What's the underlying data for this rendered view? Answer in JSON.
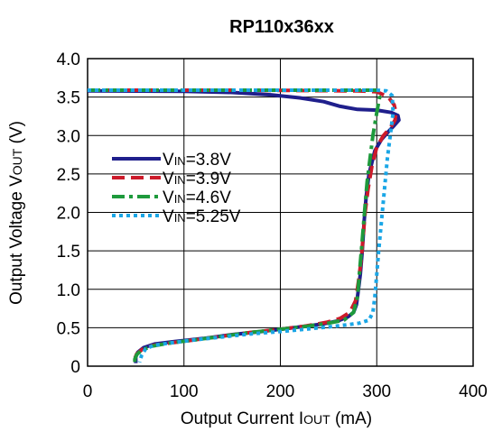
{
  "chart_data": {
    "type": "line",
    "title": "RP110x36xx",
    "xlabel": {
      "main": "Output Current I",
      "sub": "OUT",
      "unit": " (mA)"
    },
    "ylabel": {
      "main": "Output Voltage V",
      "sub": "OUT",
      "unit": " (V)"
    },
    "xlim": [
      0,
      400
    ],
    "ylim": [
      0,
      4.0
    ],
    "x_ticks": [
      "0",
      "100",
      "200",
      "300",
      "400"
    ],
    "y_ticks": [
      "0",
      "0.5",
      "1.0",
      "1.5",
      "2.0",
      "2.5",
      "3.0",
      "3.5",
      "4.0"
    ],
    "grid": true,
    "legend_position": "left",
    "series": [
      {
        "name": "VIN=3.8V",
        "label_prefix": "V",
        "label_sub": "IN",
        "label_rest": "=3.8V",
        "color": "#1f1f8c",
        "style": "solid",
        "x": [
          0,
          100,
          150,
          190,
          220,
          245,
          262,
          280,
          300,
          315,
          322,
          323,
          318,
          312,
          305,
          298,
          292,
          289,
          287,
          285,
          283,
          281,
          279,
          276,
          270,
          260,
          245,
          220,
          200,
          180,
          150,
          120,
          90,
          70,
          58,
          52,
          50,
          50
        ],
        "y": [
          3.58,
          3.575,
          3.56,
          3.53,
          3.49,
          3.44,
          3.38,
          3.34,
          3.33,
          3.3,
          3.26,
          3.2,
          3.13,
          3.05,
          2.95,
          2.8,
          2.5,
          2.2,
          1.9,
          1.5,
          1.2,
          1.0,
          0.8,
          0.7,
          0.64,
          0.59,
          0.55,
          0.51,
          0.48,
          0.45,
          0.41,
          0.36,
          0.32,
          0.29,
          0.24,
          0.18,
          0.12,
          0.04
        ]
      },
      {
        "name": "VIN=3.9V",
        "label_prefix": "V",
        "label_sub": "IN",
        "label_rest": "=3.9V",
        "color": "#cc1a2a",
        "style": "dashed",
        "x": [
          0,
          150,
          230,
          280,
          300,
          312,
          318,
          320,
          319,
          314,
          307,
          300,
          295,
          291,
          288,
          286,
          284,
          281,
          278,
          272,
          262,
          248,
          225,
          200,
          170,
          140,
          110,
          85,
          68,
          57,
          51,
          49,
          49
        ],
        "y": [
          3.59,
          3.59,
          3.585,
          3.58,
          3.57,
          3.5,
          3.4,
          3.3,
          3.2,
          3.1,
          3.0,
          2.85,
          2.6,
          2.3,
          2.0,
          1.7,
          1.4,
          1.1,
          0.85,
          0.7,
          0.62,
          0.57,
          0.52,
          0.48,
          0.44,
          0.39,
          0.34,
          0.3,
          0.27,
          0.22,
          0.16,
          0.1,
          0.04
        ]
      },
      {
        "name": "VIN=4.6V",
        "label_prefix": "V",
        "label_sub": "IN",
        "label_rest": "=4.6V",
        "color": "#1e9a3c",
        "style": "dashdot",
        "x": [
          0,
          150,
          250,
          300,
          303,
          300,
          296,
          293,
          290,
          288,
          286,
          284,
          282,
          280,
          276,
          266,
          250,
          228,
          200,
          170,
          140,
          110,
          85,
          67,
          56,
          51,
          49,
          49
        ],
        "y": [
          3.59,
          3.59,
          3.59,
          3.59,
          3.5,
          3.3,
          3.0,
          2.7,
          2.4,
          2.1,
          1.8,
          1.5,
          1.2,
          0.9,
          0.7,
          0.6,
          0.56,
          0.52,
          0.48,
          0.44,
          0.39,
          0.34,
          0.3,
          0.26,
          0.21,
          0.15,
          0.09,
          0.03
        ]
      },
      {
        "name": "VIN=5.25V",
        "label_prefix": "V",
        "label_sub": "IN",
        "label_rest": "=5.25V",
        "color": "#1aa6e6",
        "style": "dotted",
        "x": [
          0,
          200,
          290,
          300,
          310,
          316,
          317,
          314,
          311,
          308,
          305,
          302,
          300,
          298,
          296,
          292,
          282,
          270,
          250,
          225,
          200,
          170,
          140,
          110,
          85,
          68,
          60,
          56,
          54
        ],
        "y": [
          3.59,
          3.59,
          3.59,
          3.59,
          3.58,
          3.52,
          3.3,
          3.0,
          2.7,
          2.3,
          1.9,
          1.5,
          1.2,
          0.9,
          0.7,
          0.6,
          0.56,
          0.54,
          0.51,
          0.48,
          0.45,
          0.42,
          0.38,
          0.34,
          0.3,
          0.27,
          0.22,
          0.14,
          0.05
        ]
      }
    ]
  }
}
